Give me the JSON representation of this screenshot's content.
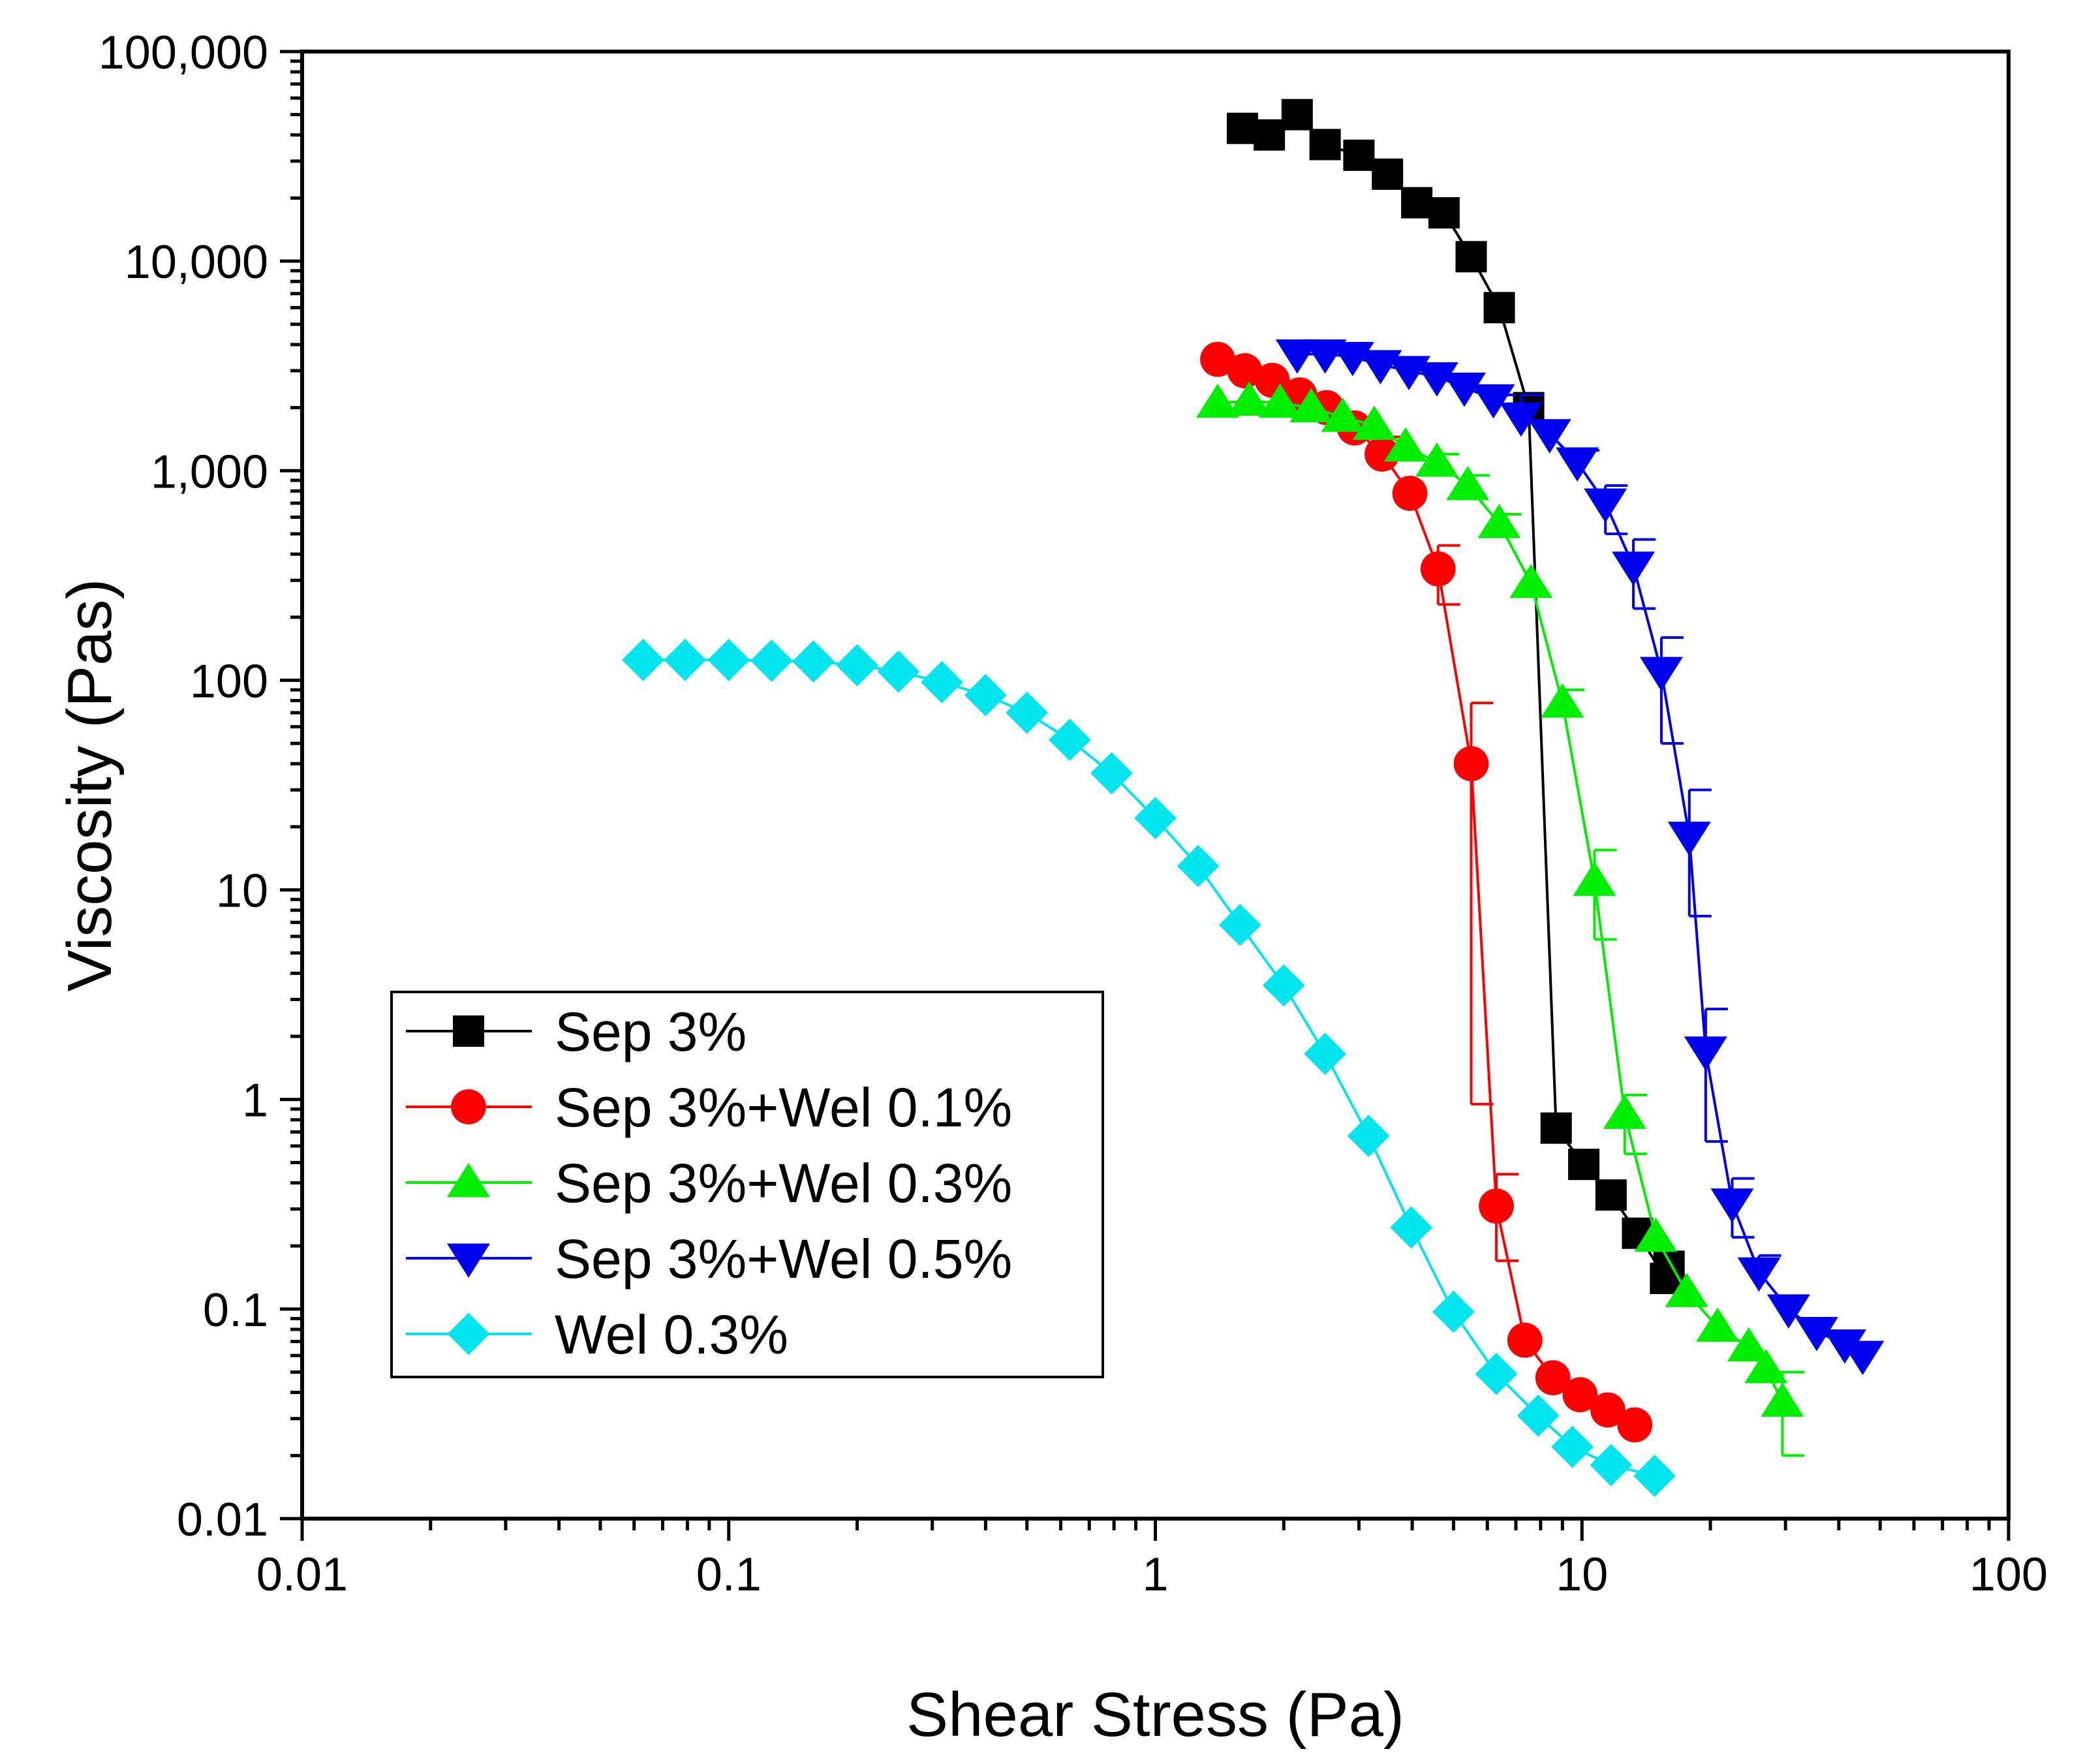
{
  "chart_data": {
    "type": "scatter",
    "title": "",
    "xlabel": "Shear Stress (Pa)",
    "ylabel": "Viscosity (Pas)",
    "xscale": "log",
    "yscale": "log",
    "xlim": [
      0.01,
      100
    ],
    "ylim": [
      0.01,
      100000
    ],
    "grid": false,
    "legend_position": "bottom-left",
    "x_ticks": [
      {
        "value": 0.01,
        "label": "0.01"
      },
      {
        "value": 0.1,
        "label": "0.1"
      },
      {
        "value": 1,
        "label": "1"
      },
      {
        "value": 10,
        "label": "10"
      },
      {
        "value": 100,
        "label": "100"
      }
    ],
    "y_ticks": [
      {
        "value": 0.01,
        "label": "0.01"
      },
      {
        "value": 0.1,
        "label": "0.1"
      },
      {
        "value": 1,
        "label": "1"
      },
      {
        "value": 10,
        "label": "10"
      },
      {
        "value": 100,
        "label": "100"
      },
      {
        "value": 1000,
        "label": "1,000"
      },
      {
        "value": 10000,
        "label": "10,000"
      },
      {
        "value": 100000,
        "label": "100,000"
      }
    ],
    "series": [
      {
        "name": "Sep 3%",
        "color": "#000000",
        "marker": "square",
        "x": [
          1.6,
          1.85,
          2.15,
          2.5,
          3.0,
          3.5,
          4.1,
          4.75,
          5.5,
          6.4,
          7.5,
          8.7,
          10.1,
          11.7,
          13.5,
          15.7,
          16.0
        ],
        "y": [
          43000,
          40000,
          50000,
          36000,
          32000,
          26000,
          19000,
          17000,
          10500,
          6000,
          2000,
          0.73,
          0.49,
          0.35,
          0.23,
          0.14,
          0.16
        ]
      },
      {
        "name": "Sep 3%+Wel 0.1%",
        "color": "#ff0000",
        "marker": "circle",
        "x": [
          1.4,
          1.62,
          1.88,
          2.18,
          2.52,
          2.93,
          3.4,
          3.95,
          4.6,
          5.5,
          6.3,
          7.35,
          8.55,
          9.9,
          11.5,
          13.3
        ],
        "y": [
          3400,
          3000,
          2700,
          2300,
          2000,
          1600,
          1200,
          780,
          340,
          40,
          0.31,
          0.071,
          0.047,
          0.039,
          0.033,
          0.028
        ],
        "err_upper": [
          null,
          null,
          null,
          null,
          null,
          1750,
          1450,
          null,
          440,
          78,
          0.44,
          null,
          null,
          null,
          null,
          null
        ],
        "err_lower": [
          null,
          null,
          null,
          null,
          null,
          null,
          null,
          null,
          230,
          0.95,
          0.17,
          null,
          null,
          null,
          null,
          null
        ]
      },
      {
        "name": "Sep 3%+Wel 0.3%",
        "color": "#00ee00",
        "marker": "triangle-up",
        "x": [
          1.4,
          1.66,
          1.96,
          2.32,
          2.75,
          3.26,
          3.86,
          4.57,
          5.4,
          6.4,
          7.6,
          9.0,
          10.7,
          12.6,
          14.9,
          17.6,
          20.8,
          24.6,
          27.0,
          29.5
        ],
        "y": [
          2100,
          2150,
          2100,
          2000,
          1800,
          1650,
          1300,
          1100,
          850,
          560,
          290,
          78,
          11,
          0.85,
          0.22,
          0.12,
          0.082,
          0.066,
          0.052,
          0.036
        ],
        "err_upper": [
          null,
          null,
          null,
          null,
          null,
          null,
          null,
          1200,
          950,
          620,
          null,
          90,
          15.5,
          1.05,
          null,
          null,
          null,
          null,
          0.05,
          0.05
        ],
        "err_lower": [
          null,
          null,
          null,
          null,
          null,
          null,
          null,
          null,
          null,
          null,
          null,
          null,
          5.8,
          0.55,
          null,
          null,
          null,
          null,
          null,
          0.02
        ]
      },
      {
        "name": "Sep 3%+Wel 0.5%",
        "color": "#0000ee",
        "marker": "triangle-down",
        "x": [
          2.15,
          2.5,
          2.9,
          3.37,
          3.93,
          4.57,
          5.3,
          6.2,
          7.2,
          8.4,
          9.75,
          11.35,
          13.2,
          15.35,
          17.85,
          19.5,
          22.5,
          26.0,
          30.5,
          35.5,
          41.3,
          45.5
        ],
        "y": [
          3600,
          3600,
          3500,
          3200,
          3000,
          2800,
          2500,
          2200,
          1800,
          1500,
          1100,
          700,
          350,
          110,
          18,
          1.7,
          0.32,
          0.15,
          0.1,
          0.078,
          0.068,
          0.06
        ],
        "err_upper": [
          null,
          null,
          null,
          null,
          null,
          null,
          null,
          2300,
          2300,
          null,
          1250,
          850,
          470,
          160,
          30,
          2.7,
          0.42,
          0.18,
          null,
          null,
          null,
          null
        ],
        "err_lower": [
          null,
          null,
          null,
          null,
          null,
          null,
          null,
          null,
          null,
          null,
          null,
          500,
          220,
          50,
          7.5,
          0.63,
          0.22,
          null,
          null,
          null,
          null,
          null
        ]
      },
      {
        "name": "Wel 0.3%",
        "color": "#00e5ee",
        "marker": "diamond",
        "x": [
          0.063,
          0.079,
          0.1,
          0.126,
          0.158,
          0.2,
          0.25,
          0.316,
          0.4,
          0.5,
          0.63,
          0.79,
          1.0,
          1.26,
          1.58,
          2.0,
          2.5,
          3.16,
          3.98,
          5.0,
          6.3,
          7.9,
          9.5,
          11.7,
          14.8
        ],
        "y": [
          125,
          125,
          125,
          124,
          123,
          118,
          110,
          98,
          85,
          70,
          52,
          36,
          22,
          13,
          6.8,
          3.5,
          1.65,
          0.67,
          0.245,
          0.097,
          0.049,
          0.031,
          0.022,
          0.018,
          0.016
        ]
      }
    ]
  }
}
